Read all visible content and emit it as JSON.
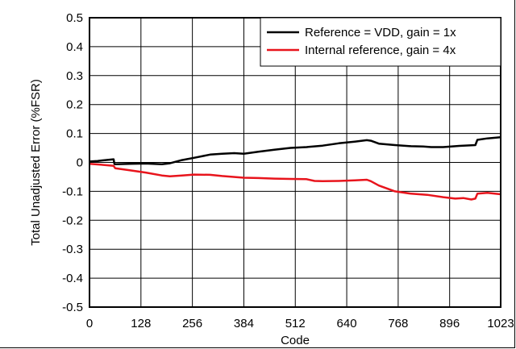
{
  "chart_data": {
    "type": "line",
    "title": "",
    "xlabel": "Code",
    "ylabel": "Total Unadjusted Error (%FSR)",
    "xlim": [
      0,
      1023
    ],
    "ylim": [
      -0.5,
      0.5
    ],
    "x_ticks": [
      0,
      128,
      256,
      384,
      512,
      640,
      768,
      896,
      1023
    ],
    "x_tick_labels": [
      "0",
      "128",
      "256",
      "384",
      "512",
      "640",
      "768",
      "896",
      "1023"
    ],
    "y_ticks": [
      0.5,
      0.4,
      0.3,
      0.2,
      0.1,
      0,
      -0.1,
      -0.2,
      -0.3,
      -0.4,
      -0.5
    ],
    "y_tick_labels": [
      "0.5",
      "0.4",
      "0.3",
      "0.2",
      "0.1",
      "0",
      "-0.1",
      "-0.2",
      "-0.3",
      "-0.4",
      "-0.5"
    ],
    "grid": true,
    "legend_position": "top-right",
    "series": [
      {
        "name": "Reference = VDD, gain = 1x",
        "color": "#000000",
        "x": [
          0,
          20,
          40,
          60,
          62,
          64,
          100,
          140,
          180,
          200,
          230,
          260,
          300,
          330,
          360,
          384,
          420,
          460,
          500,
          540,
          580,
          620,
          660,
          690,
          700,
          720,
          760,
          800,
          830,
          850,
          880,
          920,
          960,
          965,
          990,
          1023
        ],
        "y": [
          0.003,
          0.005,
          0.008,
          0.011,
          -0.005,
          -0.006,
          -0.005,
          -0.004,
          -0.006,
          -0.003,
          0.008,
          0.016,
          0.027,
          0.03,
          0.032,
          0.03,
          0.037,
          0.044,
          0.05,
          0.053,
          0.058,
          0.066,
          0.072,
          0.077,
          0.075,
          0.065,
          0.06,
          0.056,
          0.055,
          0.053,
          0.053,
          0.057,
          0.06,
          0.078,
          0.083,
          0.087
        ]
      },
      {
        "name": "Internal reference, gain = 4x",
        "color": "#e8141c",
        "x": [
          0,
          30,
          60,
          64,
          100,
          140,
          180,
          200,
          230,
          260,
          300,
          330,
          384,
          420,
          460,
          500,
          540,
          560,
          580,
          620,
          660,
          690,
          700,
          720,
          740,
          760,
          800,
          840,
          880,
          910,
          930,
          950,
          960,
          965,
          990,
          1023
        ],
        "y": [
          -0.005,
          -0.008,
          -0.012,
          -0.02,
          -0.027,
          -0.035,
          -0.045,
          -0.048,
          -0.045,
          -0.042,
          -0.043,
          -0.047,
          -0.053,
          -0.054,
          -0.056,
          -0.057,
          -0.058,
          -0.064,
          -0.065,
          -0.064,
          -0.062,
          -0.06,
          -0.065,
          -0.08,
          -0.09,
          -0.1,
          -0.108,
          -0.112,
          -0.12,
          -0.125,
          -0.123,
          -0.128,
          -0.125,
          -0.108,
          -0.105,
          -0.11
        ]
      }
    ]
  }
}
